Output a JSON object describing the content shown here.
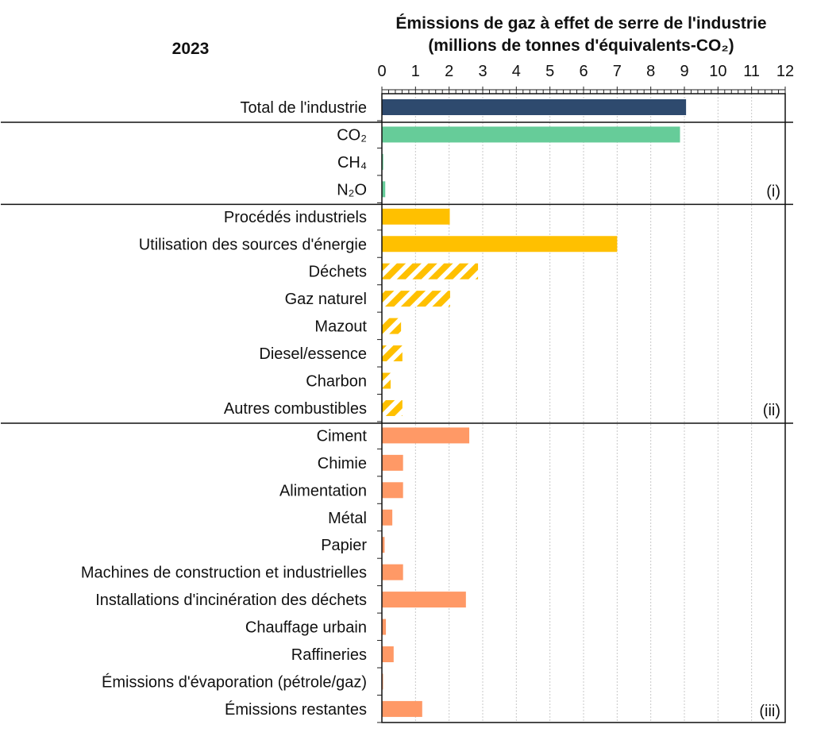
{
  "chart_data": {
    "type": "bar",
    "orientation": "horizontal",
    "year_label": "2023",
    "title_line1": "Émissions  de gaz à effet de serre de l'industrie",
    "title_line2": "(millions de tonnes d'équivalents-CO₂)",
    "xlim": [
      0,
      12
    ],
    "xticks": [
      0,
      1,
      2,
      3,
      4,
      5,
      6,
      7,
      8,
      9,
      10,
      11,
      12
    ],
    "grid": true,
    "colors": {
      "total": "#2e4a6e",
      "gas": "#66cc99",
      "source": "#ffc000",
      "sector": "#ff9966"
    },
    "groups": [
      {
        "marker": "",
        "items": [
          {
            "label": "Total de l'industrie",
            "value": 9.05,
            "color_key": "total",
            "hatched": false
          }
        ]
      },
      {
        "marker": "(i)",
        "items": [
          {
            "label": "CO₂",
            "value": 8.87,
            "color_key": "gas",
            "hatched": false
          },
          {
            "label": "CH₄",
            "value": 0.04,
            "color_key": "gas",
            "hatched": false
          },
          {
            "label": "N₂O",
            "value": 0.1,
            "color_key": "gas",
            "hatched": false
          }
        ]
      },
      {
        "marker": "(ii)",
        "items": [
          {
            "label": "Procédés industriels",
            "value": 2.02,
            "color_key": "source",
            "hatched": false
          },
          {
            "label": "Utilisation des sources d'énergie",
            "value": 7.0,
            "color_key": "source",
            "hatched": false
          },
          {
            "label": "Déchets",
            "value": 2.86,
            "color_key": "source",
            "hatched": true
          },
          {
            "label": "Gaz naturel",
            "value": 2.03,
            "color_key": "source",
            "hatched": true
          },
          {
            "label": "Mazout",
            "value": 0.57,
            "color_key": "source",
            "hatched": true
          },
          {
            "label": "Diesel/essence",
            "value": 0.61,
            "color_key": "source",
            "hatched": true
          },
          {
            "label": "Charbon",
            "value": 0.26,
            "color_key": "source",
            "hatched": true
          },
          {
            "label": "Autres combustibles",
            "value": 0.61,
            "color_key": "source",
            "hatched": true
          }
        ]
      },
      {
        "marker": "(iii)",
        "items": [
          {
            "label": "Ciment",
            "value": 2.6,
            "color_key": "sector",
            "hatched": false
          },
          {
            "label": "Chimie",
            "value": 0.63,
            "color_key": "sector",
            "hatched": false
          },
          {
            "label": "Alimentation",
            "value": 0.63,
            "color_key": "sector",
            "hatched": false
          },
          {
            "label": "Métal",
            "value": 0.31,
            "color_key": "sector",
            "hatched": false
          },
          {
            "label": "Papier",
            "value": 0.08,
            "color_key": "sector",
            "hatched": false
          },
          {
            "label": "Machines de construction et industrielles",
            "value": 0.63,
            "color_key": "sector",
            "hatched": false
          },
          {
            "label": "Installations d'incinération des déchets",
            "value": 2.5,
            "color_key": "sector",
            "hatched": false
          },
          {
            "label": "Chauffage urbain",
            "value": 0.12,
            "color_key": "sector",
            "hatched": false
          },
          {
            "label": "Raffineries",
            "value": 0.35,
            "color_key": "sector",
            "hatched": false
          },
          {
            "label": "Émissions d'évaporation (pétrole/gaz)",
            "value": 0.03,
            "color_key": "sector",
            "hatched": false
          },
          {
            "label": "Émissions restantes",
            "value": 1.2,
            "color_key": "sector",
            "hatched": false
          }
        ]
      }
    ]
  }
}
